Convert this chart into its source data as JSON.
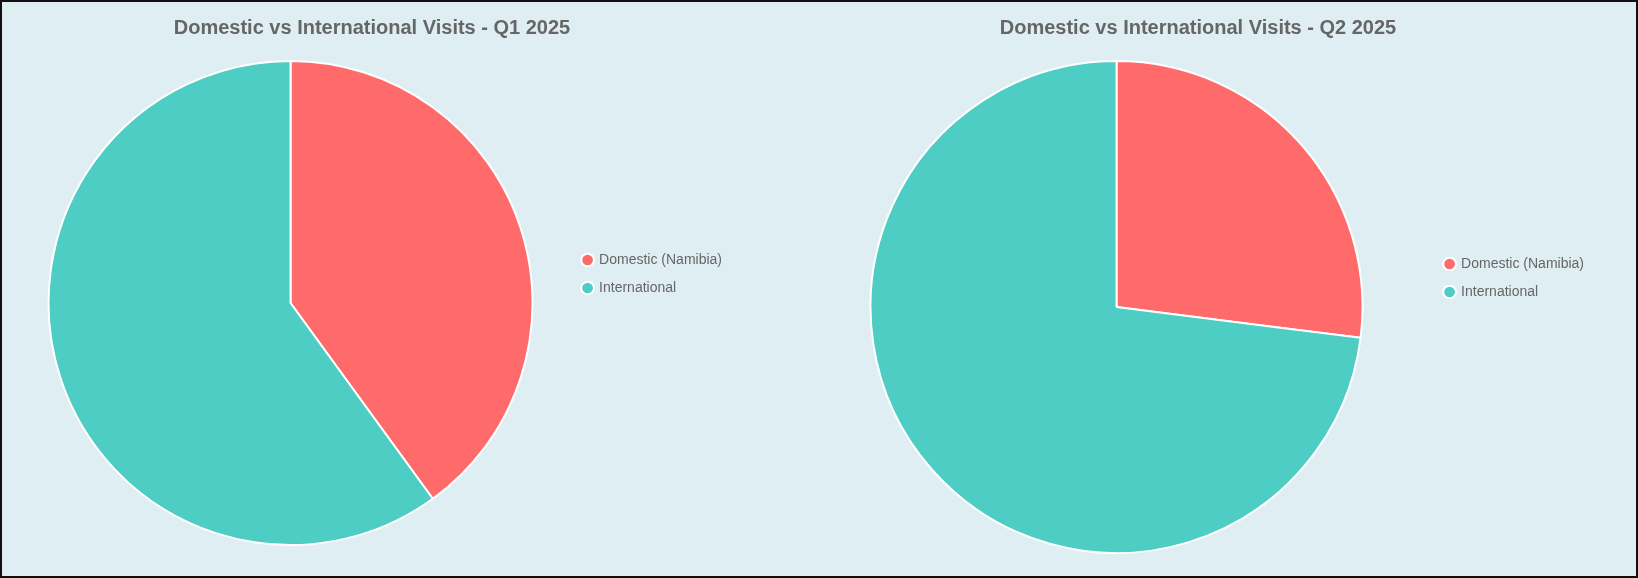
{
  "chart_data": [
    {
      "type": "pie",
      "title": "Domestic vs International Visits - Q1 2025",
      "categories": [
        "Domestic (Namibia)",
        "International"
      ],
      "values": [
        40,
        60
      ],
      "colors": [
        "#ff6b6b",
        "#4ecdc4"
      ],
      "legend": "right"
    },
    {
      "type": "pie",
      "title": "Domestic vs International Visits - Q2 2025",
      "categories": [
        "Domestic (Namibia)",
        "International"
      ],
      "values": [
        27,
        73
      ],
      "colors": [
        "#ff6b6b",
        "#4ecdc4"
      ],
      "legend": "right"
    }
  ]
}
